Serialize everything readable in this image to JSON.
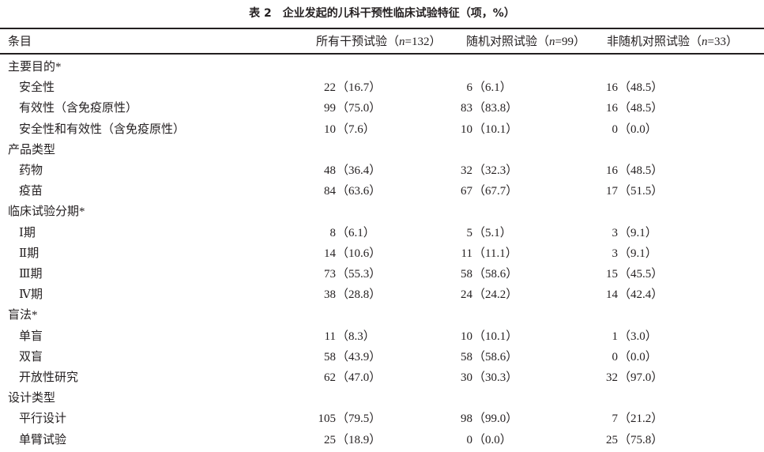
{
  "title": "表 2　企业发起的儿科干预性临床试验特征（项，%）",
  "header": {
    "item": "条目",
    "columns": [
      {
        "prefix": "所有干预试验（",
        "n": "n",
        "suffix": "=132）"
      },
      {
        "prefix": "随机对照试验（",
        "n": "n",
        "suffix": "=99）"
      },
      {
        "prefix": "非随机对照试验（",
        "n": "n",
        "suffix": "=33）"
      }
    ]
  },
  "rows": [
    {
      "label": "主要目的*",
      "group": true
    },
    {
      "label": "安全性",
      "values": [
        [
          "22",
          "（16.7）"
        ],
        [
          "6",
          "（6.1）"
        ],
        [
          "16",
          "（48.5）"
        ]
      ]
    },
    {
      "label": "有效性（含免疫原性）",
      "values": [
        [
          "99",
          "（75.0）"
        ],
        [
          "83",
          "（83.8）"
        ],
        [
          "16",
          "（48.5）"
        ]
      ]
    },
    {
      "label": "安全性和有效性（含免疫原性）",
      "values": [
        [
          "10",
          "（7.6）"
        ],
        [
          "10",
          "（10.1）"
        ],
        [
          "0",
          "（0.0）"
        ]
      ]
    },
    {
      "label": "产品类型",
      "group": true
    },
    {
      "label": "药物",
      "values": [
        [
          "48",
          "（36.4）"
        ],
        [
          "32",
          "（32.3）"
        ],
        [
          "16",
          "（48.5）"
        ]
      ]
    },
    {
      "label": "疫苗",
      "values": [
        [
          "84",
          "（63.6）"
        ],
        [
          "67",
          "（67.7）"
        ],
        [
          "17",
          "（51.5）"
        ]
      ]
    },
    {
      "label": "临床试验分期*",
      "group": true
    },
    {
      "label": "Ⅰ期",
      "values": [
        [
          "8",
          "（6.1）"
        ],
        [
          "5",
          "（5.1）"
        ],
        [
          "3",
          "（9.1）"
        ]
      ]
    },
    {
      "label": "Ⅱ期",
      "values": [
        [
          "14",
          "（10.6）"
        ],
        [
          "11",
          "（11.1）"
        ],
        [
          "3",
          "（9.1）"
        ]
      ]
    },
    {
      "label": "Ⅲ期",
      "values": [
        [
          "73",
          "（55.3）"
        ],
        [
          "58",
          "（58.6）"
        ],
        [
          "15",
          "（45.5）"
        ]
      ]
    },
    {
      "label": "Ⅳ期",
      "values": [
        [
          "38",
          "（28.8）"
        ],
        [
          "24",
          "（24.2）"
        ],
        [
          "14",
          "（42.4）"
        ]
      ]
    },
    {
      "label": "盲法*",
      "group": true
    },
    {
      "label": "单盲",
      "values": [
        [
          "11",
          "（8.3）"
        ],
        [
          "10",
          "（10.1）"
        ],
        [
          "1",
          "（3.0）"
        ]
      ]
    },
    {
      "label": "双盲",
      "values": [
        [
          "58",
          "（43.9）"
        ],
        [
          "58",
          "（58.6）"
        ],
        [
          "0",
          "（0.0）"
        ]
      ]
    },
    {
      "label": "开放性研究",
      "values": [
        [
          "62",
          "（47.0）"
        ],
        [
          "30",
          "（30.3）"
        ],
        [
          "32",
          "（97.0）"
        ]
      ]
    },
    {
      "label": "设计类型",
      "group": true
    },
    {
      "label": "平行设计",
      "values": [
        [
          "105",
          "（79.5）"
        ],
        [
          "98",
          "（99.0）"
        ],
        [
          "7",
          "（21.2）"
        ]
      ]
    },
    {
      "label": "单臂试验",
      "values": [
        [
          "25",
          "（18.9）"
        ],
        [
          "0",
          "（0.0）"
        ],
        [
          "25",
          "（75.8）"
        ]
      ]
    }
  ]
}
